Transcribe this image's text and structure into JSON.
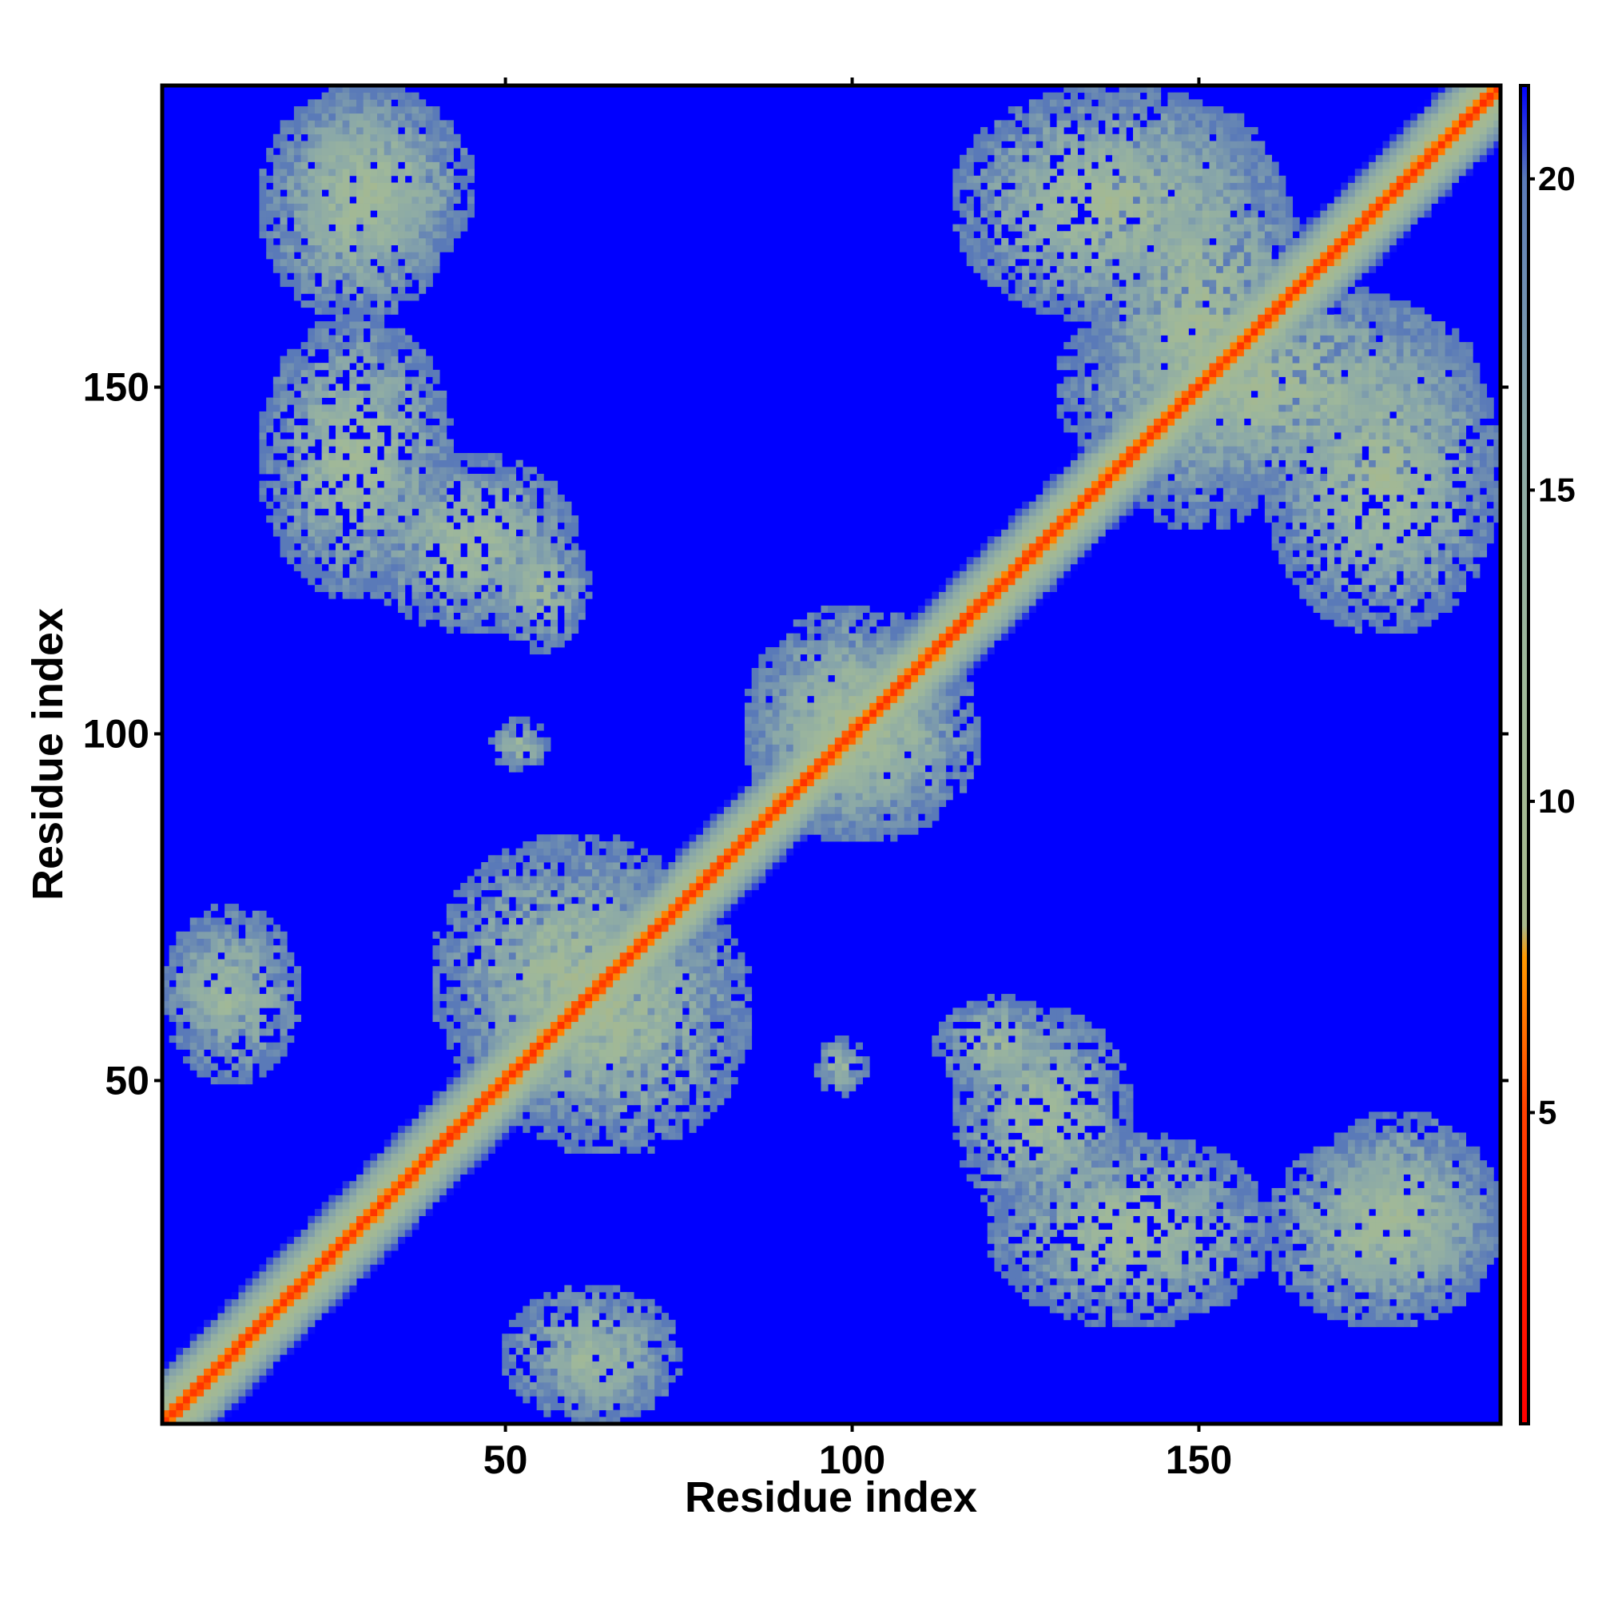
{
  "chart_data": {
    "type": "heatmap",
    "title": "",
    "xlabel": "Residue index",
    "ylabel": "Residue index",
    "n_residues": 193,
    "xlim": [
      1,
      193
    ],
    "ylim": [
      1,
      193
    ],
    "x_ticks": [
      50,
      100,
      150
    ],
    "x_tick_labels": [
      "50",
      "100",
      "150"
    ],
    "y_ticks": [
      50,
      100,
      150
    ],
    "y_tick_labels": [
      "50",
      "100",
      "150"
    ],
    "colorbar": {
      "range": [
        0,
        21.5
      ],
      "ticks": [
        5,
        10,
        15,
        20
      ],
      "tick_labels": [
        "5",
        "10",
        "15",
        "20"
      ],
      "colors": [
        {
          "value": 0,
          "color": "#ff0000"
        },
        {
          "value": 5,
          "color": "#ff4000"
        },
        {
          "value": 7.5,
          "color": "#ff9900"
        },
        {
          "value": 8,
          "color": "#a8b88c"
        },
        {
          "value": 12,
          "color": "#9fb89a"
        },
        {
          "value": 16,
          "color": "#8aa8a8"
        },
        {
          "value": 20,
          "color": "#5a7ab8"
        },
        {
          "value": 21.5,
          "color": "#0000ff"
        }
      ]
    },
    "background_value": 21.5,
    "cutoff": 20,
    "diagonal_band_width": 8,
    "contact_regions": [
      {
        "x": [
          1,
          48
        ],
        "y": [
          1,
          48
        ],
        "note": "diagonal"
      },
      {
        "x": [
          15,
          42
        ],
        "y": [
          160,
          193
        ],
        "value_range": [
          6,
          20
        ]
      },
      {
        "x": [
          15,
          42
        ],
        "y": [
          120,
          160
        ],
        "value_range": [
          6,
          20
        ]
      },
      {
        "x": [
          48,
          62
        ],
        "y": [
          112,
          130
        ],
        "value_range": [
          7,
          20
        ]
      },
      {
        "x": [
          48,
          56
        ],
        "y": [
          96,
          102
        ],
        "value_range": [
          8,
          20
        ]
      },
      {
        "x": [
          95,
          100
        ],
        "y": [
          48,
          56
        ],
        "value_range": [
          8,
          20
        ]
      },
      {
        "x": [
          1,
          14
        ],
        "y": [
          55,
          72
        ],
        "value_range": [
          10,
          20
        ]
      },
      {
        "x": [
          45,
          85
        ],
        "y": [
          40,
          80
        ],
        "value_range": [
          5,
          20
        ]
      },
      {
        "x": [
          85,
          115
        ],
        "y": [
          85,
          118
        ],
        "value_range": [
          5,
          20
        ]
      },
      {
        "x": [
          115,
          140
        ],
        "y": [
          30,
          60
        ],
        "value_range": [
          6,
          20
        ]
      },
      {
        "x": [
          165,
          193
        ],
        "y": [
          17,
          45
        ],
        "value_range": [
          6,
          20
        ]
      },
      {
        "x": [
          135,
          165
        ],
        "y": [
          130,
          190
        ],
        "value_range": [
          5,
          20
        ]
      },
      {
        "x": [
          160,
          193
        ],
        "y": [
          115,
          160
        ],
        "value_range": [
          5,
          20
        ]
      },
      {
        "x": [
          50,
          75
        ],
        "y": [
          1,
          20
        ],
        "value_range": [
          8,
          20
        ]
      }
    ]
  }
}
